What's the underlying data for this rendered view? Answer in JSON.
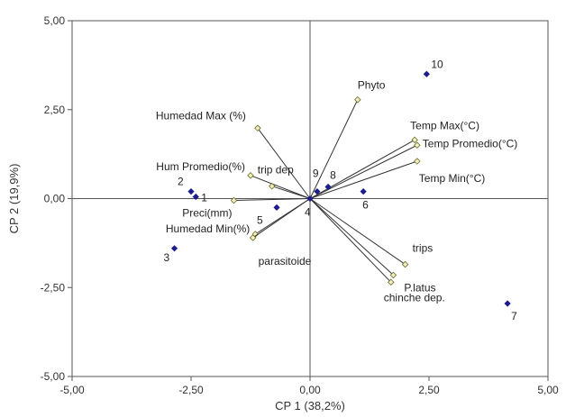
{
  "chart_data": {
    "type": "scatter",
    "subtype": "pca-biplot",
    "title": "",
    "xlabel": "CP 1 (38,2%)",
    "ylabel": "CP 2 (19,9%)",
    "xlim": [
      -5,
      5
    ],
    "ylim": [
      -5,
      5
    ],
    "x_ticks": [
      "-5,00",
      "-2,50",
      "0,00",
      "2,50",
      "5,00"
    ],
    "y_ticks": [
      "5,00",
      "2,50",
      "0,00",
      "-2,50",
      "-5,00"
    ],
    "grid": false,
    "reference_lines": "x=0 and y=0",
    "observations": [
      {
        "label": "1",
        "x": -2.4,
        "y": 0.05
      },
      {
        "label": "2",
        "x": -2.5,
        "y": 0.2
      },
      {
        "label": "3",
        "x": -2.85,
        "y": -1.4
      },
      {
        "label": "4",
        "x": 0.0,
        "y": 0.0
      },
      {
        "label": "5",
        "x": -0.7,
        "y": -0.25
      },
      {
        "label": "6",
        "x": 1.12,
        "y": 0.2
      },
      {
        "label": "7",
        "x": 4.15,
        "y": -2.95
      },
      {
        "label": "8",
        "x": 0.38,
        "y": 0.33
      },
      {
        "label": "9",
        "x": 0.15,
        "y": 0.2
      },
      {
        "label": "10",
        "x": 2.45,
        "y": 3.5
      }
    ],
    "variables": [
      {
        "label": "Phyto",
        "x": 1.0,
        "y": 2.78
      },
      {
        "label": "Humedad Max (%)",
        "x": -1.1,
        "y": 1.98
      },
      {
        "label": "Temp Max(°C)",
        "x": 2.2,
        "y": 1.65
      },
      {
        "label": "Temp Promedio(°C)",
        "x": 2.25,
        "y": 1.5
      },
      {
        "label": "Temp Min(°C)",
        "x": 2.25,
        "y": 1.05
      },
      {
        "label": "Hum Promedio(%)",
        "x": -1.25,
        "y": 0.65
      },
      {
        "label": "trip dep",
        "x": -0.8,
        "y": 0.35
      },
      {
        "label": "Preci(mm)",
        "x": -1.6,
        "y": -0.05
      },
      {
        "label": "Humedad Min(%)",
        "x": -1.15,
        "y": -1.0
      },
      {
        "label": "parasitoide",
        "x": -1.2,
        "y": -1.1
      },
      {
        "label": "trips",
        "x": 2.0,
        "y": -1.85
      },
      {
        "label": "P.latus",
        "x": 1.75,
        "y": -2.15
      },
      {
        "label": "chinche dep.",
        "x": 1.7,
        "y": -2.35
      }
    ],
    "colors": {
      "observation": "#1c1c8c",
      "variable_marker_fill": "#f2f0c0",
      "variable_marker_stroke": "#6b6b2a",
      "vector_line": "#333333",
      "axis": "#555555"
    }
  }
}
